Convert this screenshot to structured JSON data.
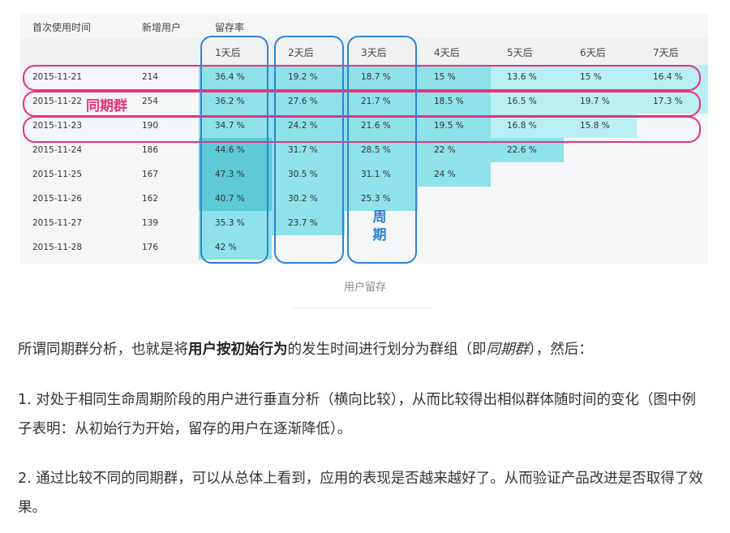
{
  "table": {
    "headers": {
      "first_use_time": "首次使用时间",
      "new_users": "新增用户",
      "retention": "留存率"
    },
    "day_headers": [
      "1天后",
      "2天后",
      "3天后",
      "4天后",
      "5天后",
      "6天后",
      "7天后"
    ],
    "rows": [
      {
        "date": "2015-11-21",
        "users": "214",
        "values": [
          "36.4 %",
          "19.2 %",
          "18.7 %",
          "15 %",
          "13.6 %",
          "15 %",
          "16.4 %"
        ]
      },
      {
        "date": "2015-11-22",
        "users": "254",
        "values": [
          "36.2 %",
          "27.6 %",
          "21.7 %",
          "18.5 %",
          "16.5 %",
          "19.7 %",
          "17.3 %"
        ]
      },
      {
        "date": "2015-11-23",
        "users": "190",
        "values": [
          "34.7 %",
          "24.2 %",
          "21.6 %",
          "19.5 %",
          "16.8 %",
          "15.8 %"
        ]
      },
      {
        "date": "2015-11-24",
        "users": "186",
        "values": [
          "44.6 %",
          "31.7 %",
          "28.5 %",
          "22 %",
          "22.6 %"
        ]
      },
      {
        "date": "2015-11-25",
        "users": "167",
        "values": [
          "47.3 %",
          "30.5 %",
          "31.1 %",
          "24 %"
        ]
      },
      {
        "date": "2015-11-26",
        "users": "162",
        "values": [
          "40.7 %",
          "30.2 %",
          "25.3 %"
        ]
      },
      {
        "date": "2015-11-27",
        "users": "139",
        "values": [
          "35.3 %",
          "23.7 %"
        ]
      },
      {
        "date": "2015-11-28",
        "users": "176",
        "values": [
          "42 %"
        ]
      }
    ],
    "colors": {
      "deep": "#5ccbd7",
      "mid": "#8fe1ea",
      "light": "#b9eff4",
      "highlight_ring": "#e8317a",
      "period_ring": "#2f83d6"
    }
  },
  "annotations": {
    "cohort_label": "同期群",
    "period_label": "周期"
  },
  "caption": "用户留存",
  "article": {
    "p1": {
      "pre": "所谓同期群分析，也就是将",
      "bold": "用户按初始行为",
      "mid": "的发生时间进行划分为群组（即",
      "italic": "同期群",
      "post": "），然后："
    },
    "p2": "1. 对处于相同生命周期阶段的用户进行垂直分析（横向比较），从而比较得出相似群体随时间的变化（图中例子表明：从初始行为开始，留存的用户在逐渐降低）。",
    "p3": "2. 通过比较不同的同期群，可以从总体上看到，应用的表现是否越来越好了。从而验证产品改进是否取得了效果。"
  }
}
